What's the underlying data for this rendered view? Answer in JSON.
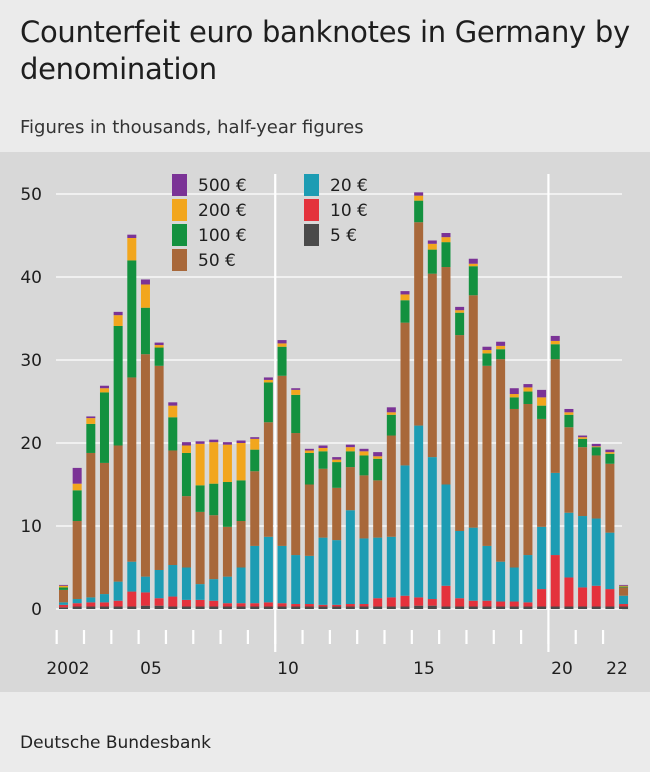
{
  "header": {
    "title": "Counterfeit euro banknotes in Germany by denomination",
    "subtitle": "Figures in thousands, half-year figures"
  },
  "footer": {
    "source": "Deutsche Bundesbank"
  },
  "colors": {
    "plot_background": "#d8d8d8",
    "page_background": "#ebebeb",
    "d5": "#4a4a4a",
    "d10": "#e4323c",
    "d20": "#1d9cb3",
    "d50": "#a8683a",
    "d100": "#13913f",
    "d200": "#f2a61d",
    "d500": "#7b3396"
  },
  "chart_data": {
    "type": "bar",
    "stacked": true,
    "ylim": [
      0,
      50
    ],
    "yticks": [
      "0",
      "10",
      "20",
      "30",
      "40",
      "50"
    ],
    "xtick_labels": [
      "2002",
      "05",
      "10",
      "15",
      "20",
      "22"
    ],
    "vertical_reference_years": [
      "10",
      "20"
    ],
    "grid": "horizontal",
    "legend_position": "top-left",
    "categories": [
      "2002 H1",
      "2002 H2",
      "2003 H1",
      "2003 H2",
      "2004 H1",
      "2004 H2",
      "2005 H1",
      "2005 H2",
      "2006 H1",
      "2006 H2",
      "2007 H1",
      "2007 H2",
      "2008 H1",
      "2008 H2",
      "2009 H1",
      "2009 H2",
      "2010 H1",
      "2010 H2",
      "2011 H1",
      "2011 H2",
      "2012 H1",
      "2012 H2",
      "2013 H1",
      "2013 H2",
      "2014 H1",
      "2014 H2",
      "2015 H1",
      "2015 H2",
      "2016 H1",
      "2016 H2",
      "2017 H1",
      "2017 H2",
      "2018 H1",
      "2018 H2",
      "2019 H1",
      "2019 H2",
      "2020 H1",
      "2020 H2",
      "2021 H1",
      "2021 H2",
      "2022 H1",
      "2022 H2"
    ],
    "series": [
      {
        "name": "5 €",
        "color_key": "d5",
        "values": [
          0.2,
          0.3,
          0.3,
          0.3,
          0.3,
          0.3,
          0.4,
          0.4,
          0.3,
          0.3,
          0.3,
          0.3,
          0.3,
          0.3,
          0.3,
          0.3,
          0.3,
          0.3,
          0.3,
          0.3,
          0.3,
          0.3,
          0.3,
          0.3,
          0.3,
          0.3,
          0.4,
          0.4,
          0.3,
          0.3,
          0.3,
          0.3,
          0.3,
          0.3,
          0.3,
          0.3,
          0.3,
          0.3,
          0.3,
          0.3,
          0.3,
          0.3
        ]
      },
      {
        "name": "10 €",
        "color_key": "d10",
        "values": [
          0.3,
          0.4,
          0.5,
          0.5,
          0.7,
          1.8,
          1.6,
          0.9,
          1.2,
          0.8,
          0.8,
          0.7,
          0.4,
          0.4,
          0.4,
          0.5,
          0.4,
          0.3,
          0.3,
          0.2,
          0.2,
          0.3,
          0.3,
          1.0,
          1.1,
          1.3,
          1.0,
          0.8,
          2.5,
          1.0,
          0.7,
          0.7,
          0.6,
          0.6,
          0.5,
          2.1,
          6.2,
          3.5,
          2.3,
          2.5,
          2.1,
          0.3
        ]
      },
      {
        "name": "20 €",
        "color_key": "d20",
        "values": [
          0.3,
          0.5,
          0.6,
          1.0,
          2.3,
          3.6,
          1.9,
          3.4,
          3.8,
          3.9,
          1.9,
          2.6,
          3.2,
          4.3,
          6.9,
          7.9,
          6.9,
          5.9,
          5.8,
          8.1,
          7.8,
          11.3,
          7.9,
          7.3,
          7.3,
          15.7,
          20.7,
          17.1,
          12.2,
          8.1,
          8.8,
          6.6,
          4.8,
          4.1,
          5.7,
          7.5,
          9.9,
          7.8,
          8.6,
          8.1,
          6.8,
          1.0
        ]
      },
      {
        "name": "50 €",
        "color_key": "d50",
        "values": [
          1.5,
          9.4,
          17.4,
          15.8,
          16.4,
          22.2,
          26.8,
          24.6,
          13.8,
          8.6,
          8.7,
          7.7,
          6.0,
          5.6,
          9.0,
          13.8,
          20.5,
          14.7,
          8.6,
          8.3,
          6.3,
          5.2,
          7.6,
          6.9,
          12.2,
          17.2,
          24.5,
          22.1,
          26.2,
          23.6,
          28.0,
          21.7,
          24.4,
          19.1,
          18.2,
          13.0,
          13.7,
          10.3,
          8.3,
          7.6,
          8.3,
          1.0
        ]
      },
      {
        "name": "100 €",
        "color_key": "d100",
        "values": [
          0.3,
          3.7,
          3.5,
          8.5,
          14.4,
          14.1,
          5.6,
          2.2,
          4.0,
          5.2,
          3.2,
          3.8,
          5.4,
          4.9,
          2.6,
          4.8,
          3.5,
          4.6,
          3.8,
          2.1,
          3.1,
          1.9,
          2.4,
          2.6,
          2.5,
          2.7,
          2.6,
          2.9,
          3.0,
          2.7,
          3.5,
          1.5,
          1.2,
          1.4,
          1.5,
          1.6,
          1.8,
          1.5,
          1.0,
          1.0,
          1.2,
          0.1
        ]
      },
      {
        "name": "200 €",
        "color_key": "d200",
        "values": [
          0.2,
          0.8,
          0.7,
          0.5,
          1.3,
          2.7,
          2.8,
          0.3,
          1.4,
          0.9,
          5.0,
          5.0,
          4.5,
          4.5,
          1.3,
          0.3,
          0.4,
          0.6,
          0.3,
          0.4,
          0.3,
          0.5,
          0.5,
          0.3,
          0.3,
          0.7,
          0.6,
          0.7,
          0.6,
          0.3,
          0.3,
          0.4,
          0.4,
          0.4,
          0.5,
          1.0,
          0.4,
          0.3,
          0.2,
          0.1,
          0.2,
          0.1
        ]
      },
      {
        "name": "500 €",
        "color_key": "d500",
        "values": [
          0.1,
          1.9,
          0.2,
          0.3,
          0.4,
          0.4,
          0.6,
          0.3,
          0.4,
          0.4,
          0.3,
          0.3,
          0.3,
          0.3,
          0.2,
          0.3,
          0.4,
          0.2,
          0.2,
          0.3,
          0.3,
          0.3,
          0.3,
          0.5,
          0.6,
          0.4,
          0.4,
          0.4,
          0.5,
          0.4,
          0.6,
          0.4,
          0.5,
          0.7,
          0.4,
          0.9,
          0.6,
          0.4,
          0.2,
          0.3,
          0.3,
          0.1
        ]
      }
    ],
    "legend": [
      {
        "label": "500 €",
        "color_key": "d500"
      },
      {
        "label": "200 €",
        "color_key": "d200"
      },
      {
        "label": "100 €",
        "color_key": "d100"
      },
      {
        "label": "50 €",
        "color_key": "d50"
      },
      {
        "label": "20 €",
        "color_key": "d20"
      },
      {
        "label": "10 €",
        "color_key": "d10"
      },
      {
        "label": "5 €",
        "color_key": "d5"
      }
    ]
  }
}
